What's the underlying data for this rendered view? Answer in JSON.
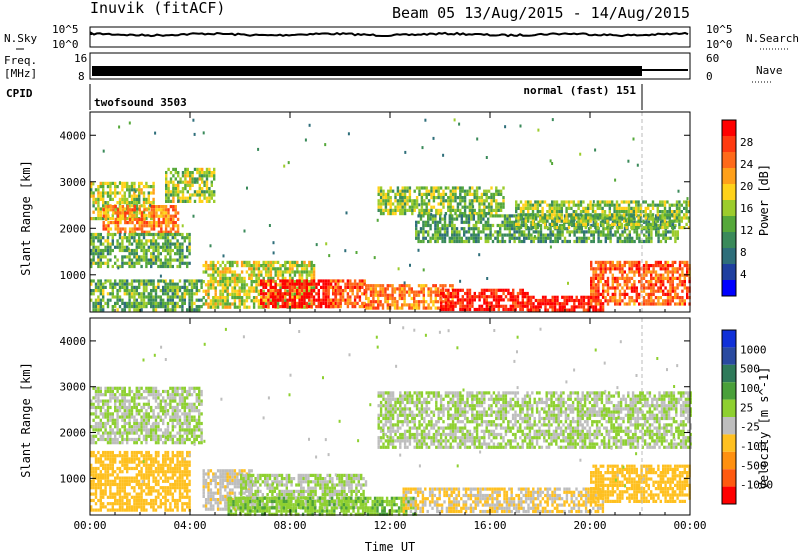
{
  "header": {
    "station": "Inuvik (fitACF)",
    "beam_range": "Beam 05 13/Aug/2015 - 14/Aug/2015"
  },
  "strip": {
    "nsky_label": "N.Sky",
    "nsky_ticks": [
      "10^5",
      "10^0"
    ],
    "nsearch_label": "N.Search",
    "nsearch_ticks": [
      "10^5",
      "10^0"
    ],
    "freq_label_1": "Freq.",
    "freq_label_2": "[MHz]",
    "freq_ticks": [
      "16",
      "8"
    ],
    "nave_label": "Nave",
    "nave_ticks": [
      "60",
      "0"
    ],
    "cpid_label": "CPID",
    "cpid_programs": [
      "twofsound 3503",
      "normal (fast) 151"
    ]
  },
  "colors": {
    "power_scale": [
      "#0000ff",
      "#1f3f9f",
      "#2e6e7a",
      "#3a8a5a",
      "#55a83a",
      "#9ccc2c",
      "#ffd21a",
      "#ffa01a",
      "#ff6a1a",
      "#ff3a10",
      "#ff0000"
    ],
    "velocity_scale": [
      "#1030d8",
      "#2a4aa0",
      "#2f7a5a",
      "#4aa03a",
      "#8ed030",
      "#bebebe",
      "#ffc020",
      "#ff9010",
      "#ff5a10",
      "#ff0000"
    ]
  },
  "chart_data": [
    {
      "type": "heatmap",
      "title": "Power",
      "xlabel": "",
      "ylabel": "Slant Range [km]",
      "xlim": [
        "00:00",
        "00:00"
      ],
      "ylim": [
        200,
        4500
      ],
      "yticks": [
        "1000",
        "2000",
        "3000",
        "4000"
      ],
      "colorbar": {
        "label": "Power [dB]",
        "ticks": [
          "28",
          "24",
          "20",
          "16",
          "12",
          "8",
          "4"
        ],
        "range": [
          0,
          30
        ]
      },
      "bands": [
        {
          "t0": 0.0,
          "t1": 2.5,
          "r0": 2200,
          "r1": 3000,
          "v": 15
        },
        {
          "t0": 0.5,
          "t1": 3.5,
          "r0": 1900,
          "r1": 2500,
          "v": 22
        },
        {
          "t0": 0.0,
          "t1": 4.0,
          "r0": 1200,
          "r1": 1900,
          "v": 12
        },
        {
          "t0": 0.0,
          "t1": 4.5,
          "r0": 250,
          "r1": 900,
          "v": 12
        },
        {
          "t0": 3.0,
          "t1": 5.0,
          "r0": 2600,
          "r1": 3300,
          "v": 15
        },
        {
          "t0": 4.5,
          "t1": 9.0,
          "r0": 300,
          "r1": 1300,
          "v": 16
        },
        {
          "t0": 6.8,
          "t1": 9.8,
          "r0": 300,
          "r1": 900,
          "v": 29
        },
        {
          "t0": 9.5,
          "t1": 11.0,
          "r0": 300,
          "r1": 900,
          "v": 24
        },
        {
          "t0": 11.0,
          "t1": 14.5,
          "r0": 250,
          "r1": 800,
          "v": 22
        },
        {
          "t0": 14.0,
          "t1": 17.5,
          "r0": 250,
          "r1": 700,
          "v": 28
        },
        {
          "t0": 17.5,
          "t1": 20.5,
          "r0": 250,
          "r1": 550,
          "v": 29
        },
        {
          "t0": 20.0,
          "t1": 24.0,
          "r0": 400,
          "r1": 1300,
          "v": 24
        },
        {
          "t0": 11.5,
          "t1": 16.5,
          "r0": 2300,
          "r1": 2900,
          "v": 14
        },
        {
          "t0": 13.0,
          "t1": 23.5,
          "r0": 1700,
          "r1": 2300,
          "v": 11
        },
        {
          "t0": 17.0,
          "t1": 24.0,
          "r0": 2000,
          "r1": 2600,
          "v": 14
        }
      ]
    },
    {
      "type": "heatmap",
      "title": "Velocity",
      "xlabel": "Time UT",
      "ylabel": "Slant Range [km]",
      "xlim": [
        "00:00",
        "00:00"
      ],
      "ylim": [
        200,
        4500
      ],
      "xticks": [
        "00:00",
        "04:00",
        "08:00",
        "12:00",
        "16:00",
        "20:00",
        "00:00"
      ],
      "yticks": [
        "1000",
        "2000",
        "3000",
        "4000"
      ],
      "colorbar": {
        "label": "Velocity [m s^-1]",
        "ticks": [
          "1000",
          "500",
          "100",
          "25",
          "-25",
          "-100",
          "-500",
          "-1000"
        ],
        "range": [
          -1000,
          1000
        ]
      },
      "bands": [
        {
          "t0": 0.0,
          "t1": 4.5,
          "r0": 1800,
          "r1": 3000,
          "v": 0
        },
        {
          "t0": 0.0,
          "t1": 4.0,
          "r0": 300,
          "r1": 1600,
          "v": -300
        },
        {
          "t0": 4.5,
          "t1": 6.5,
          "r0": 300,
          "r1": 1200,
          "v": -150
        },
        {
          "t0": 6.0,
          "t1": 11.0,
          "r0": 350,
          "r1": 1100,
          "v": 0
        },
        {
          "t0": 5.5,
          "t1": 13.0,
          "r0": 200,
          "r1": 600,
          "v": 150
        },
        {
          "t0": 12.5,
          "t1": 20.5,
          "r0": 250,
          "r1": 800,
          "v": -200
        },
        {
          "t0": 20.0,
          "t1": 24.0,
          "r0": 500,
          "r1": 1300,
          "v": -300
        },
        {
          "t0": 11.5,
          "t1": 24.0,
          "r0": 1700,
          "r1": 2900,
          "v": 0
        }
      ]
    }
  ]
}
